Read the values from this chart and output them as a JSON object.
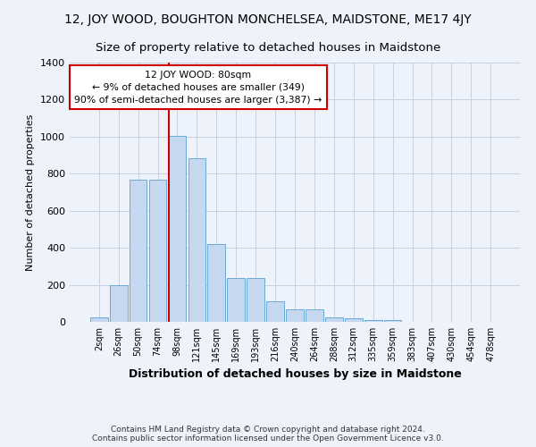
{
  "title": "12, JOY WOOD, BOUGHTON MONCHELSEA, MAIDSTONE, ME17 4JY",
  "subtitle": "Size of property relative to detached houses in Maidstone",
  "xlabel": "Distribution of detached houses by size in Maidstone",
  "ylabel": "Number of detached properties",
  "bar_values": [
    25,
    200,
    770,
    770,
    1005,
    885,
    420,
    235,
    235,
    110,
    70,
    70,
    25,
    20,
    10,
    10,
    0,
    0,
    0,
    0,
    0
  ],
  "bar_labels": [
    "2sqm",
    "26sqm",
    "50sqm",
    "74sqm",
    "98sqm",
    "121sqm",
    "145sqm",
    "169sqm",
    "193sqm",
    "216sqm",
    "240sqm",
    "264sqm",
    "288sqm",
    "312sqm",
    "335sqm",
    "359sqm",
    "383sqm",
    "407sqm",
    "430sqm",
    "454sqm",
    "478sqm"
  ],
  "bar_color": "#c5d8f0",
  "bar_edge_color": "#6aaad4",
  "background_color": "#eef2fa",
  "vline_x_index": 3.55,
  "vline_color": "#cc0000",
  "annotation_text": "  12 JOY WOOD: 80sqm  \n← 9% of detached houses are smaller (349)\n90% of semi-detached houses are larger (3,387) →",
  "annotation_box_color": "#ffffff",
  "annotation_box_edge_color": "#cc0000",
  "ylim": [
    0,
    1400
  ],
  "yticks": [
    0,
    200,
    400,
    600,
    800,
    1000,
    1200,
    1400
  ],
  "footer_text": "Contains HM Land Registry data © Crown copyright and database right 2024.\nContains public sector information licensed under the Open Government Licence v3.0.",
  "title_fontsize": 10,
  "subtitle_fontsize": 9.5
}
